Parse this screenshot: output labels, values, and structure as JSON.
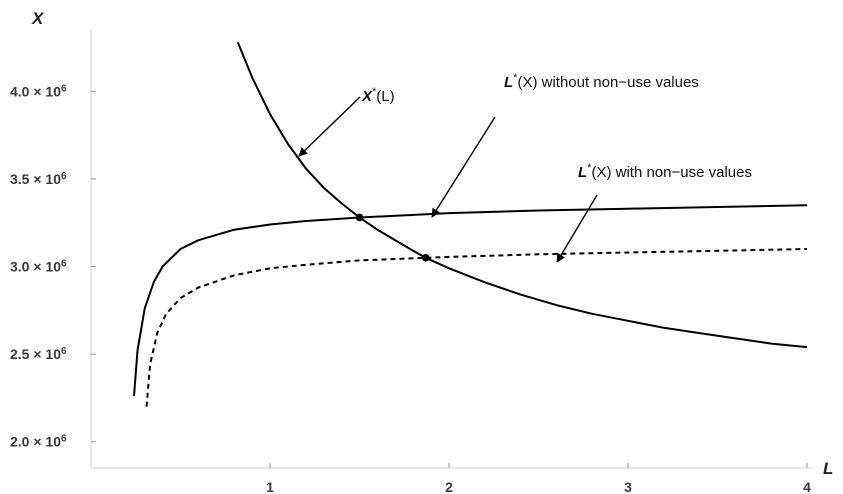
{
  "chart_data": {
    "type": "line",
    "xlabel": "L",
    "ylabel": "X",
    "xlim": [
      0,
      4
    ],
    "ylim": [
      1850000,
      4350000
    ],
    "x_ticks": [
      {
        "value": 1,
        "label": "1"
      },
      {
        "value": 2,
        "label": "2"
      },
      {
        "value": 3,
        "label": "3"
      },
      {
        "value": 4,
        "label": "4"
      }
    ],
    "y_ticks": [
      {
        "value": 2000000,
        "label": "2.0 × 10",
        "exp": "6"
      },
      {
        "value": 2500000,
        "label": "2.5 × 10",
        "exp": "6"
      },
      {
        "value": 3000000,
        "label": "3.0 × 10",
        "exp": "6"
      },
      {
        "value": 3500000,
        "label": "3.5 × 10",
        "exp": "6"
      },
      {
        "value": 4000000,
        "label": "4.0 × 10",
        "exp": "6"
      }
    ],
    "series": [
      {
        "id": "x-star",
        "style": "solid",
        "x": [
          0.82,
          0.9,
          1.0,
          1.1,
          1.2,
          1.3,
          1.4,
          1.5,
          1.6,
          1.7,
          1.8,
          1.87,
          2.0,
          2.2,
          2.4,
          2.6,
          2.8,
          3.0,
          3.2,
          3.4,
          3.6,
          3.8,
          4.0
        ],
        "y": [
          4280000,
          4080000,
          3870000,
          3700000,
          3560000,
          3450000,
          3360000,
          3280000,
          3210000,
          3150000,
          3090000,
          3050000,
          2990000,
          2910000,
          2840000,
          2780000,
          2730000,
          2690000,
          2650000,
          2620000,
          2590000,
          2560000,
          2540000
        ]
      },
      {
        "id": "l-star-without",
        "style": "solid",
        "x": [
          0.24,
          0.26,
          0.3,
          0.35,
          0.4,
          0.5,
          0.6,
          0.8,
          1.0,
          1.2,
          1.5,
          2.0,
          2.5,
          3.0,
          3.5,
          4.0
        ],
        "y": [
          2260000,
          2520000,
          2760000,
          2910000,
          3000000,
          3100000,
          3150000,
          3210000,
          3240000,
          3260000,
          3280000,
          3305000,
          3320000,
          3330000,
          3340000,
          3350000
        ]
      },
      {
        "id": "l-star-with",
        "style": "dashed",
        "x": [
          0.31,
          0.33,
          0.37,
          0.42,
          0.5,
          0.6,
          0.8,
          1.0,
          1.2,
          1.5,
          1.87,
          2.0,
          2.5,
          3.0,
          3.5,
          4.0
        ],
        "y": [
          2200000,
          2440000,
          2620000,
          2730000,
          2820000,
          2880000,
          2950000,
          2990000,
          3010000,
          3035000,
          3050000,
          3055000,
          3070000,
          3080000,
          3090000,
          3100000
        ]
      }
    ],
    "intersections": [
      {
        "x": 1.5,
        "y": 3280000
      },
      {
        "x": 1.87,
        "y": 3050000
      }
    ],
    "annotations": [
      {
        "text": "X*(L)",
        "points_to": {
          "x": 1.15,
          "y": 3680000
        }
      },
      {
        "text": "L*(X) without non−use values",
        "points_to": {
          "x": 1.9,
          "y": 3300000
        }
      },
      {
        "text": "L*(X) with non−use values",
        "points_to": {
          "x": 2.6,
          "y": 3075000
        }
      }
    ],
    "grid": false
  }
}
